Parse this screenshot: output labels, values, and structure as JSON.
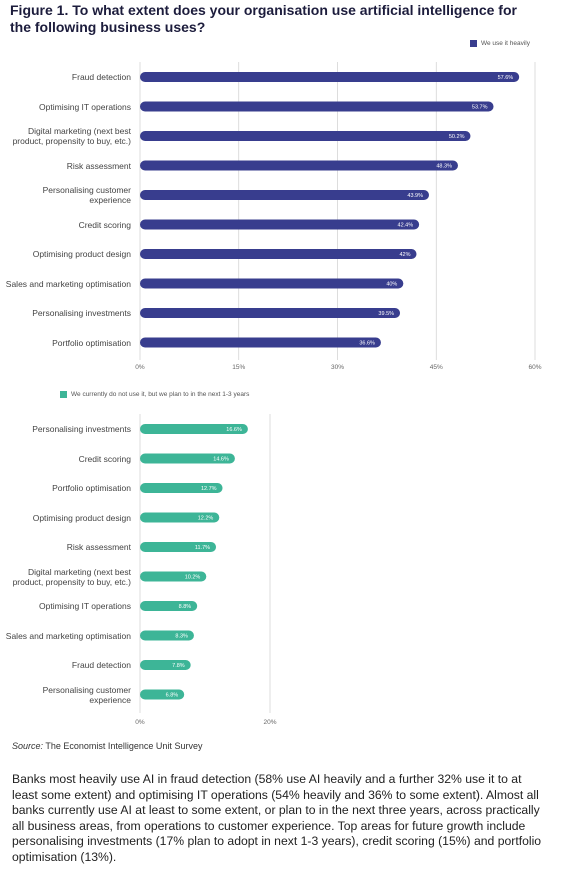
{
  "title": "Figure 1. To what extent does your organisation use artificial intelligence for the following business uses?",
  "chart_data": [
    {
      "type": "bar",
      "orientation": "horizontal",
      "categories": [
        "Fraud detection",
        "Optimising IT operations",
        "Digital marketing (next best product, propensity to buy, etc.)",
        "Risk assessment",
        "Personalising customer experience",
        "Credit scoring",
        "Optimising product design",
        "Sales and marketing optimisation",
        "Personalising investments",
        "Portfolio optimisation"
      ],
      "series": [
        {
          "name": "We use it heavily",
          "color": "#383d8e",
          "values": [
            57.6,
            53.7,
            50.2,
            48.3,
            43.9,
            42.4,
            42,
            40,
            39.5,
            36.6
          ],
          "value_labels": [
            "57.6%",
            "53.7%",
            "50.2%",
            "48.3%",
            "43.9%",
            "42.4%",
            "42%",
            "40%",
            "39.5%",
            "36.6%"
          ]
        }
      ],
      "xlim": [
        0,
        60
      ],
      "xticks": [
        {
          "value": 0,
          "label": "0%"
        },
        {
          "value": 15,
          "label": "15%"
        },
        {
          "value": 30,
          "label": "30%"
        },
        {
          "value": 45,
          "label": "45%"
        },
        {
          "value": 60,
          "label": "60%"
        }
      ],
      "grid": true,
      "legend": "upper right"
    },
    {
      "type": "bar",
      "orientation": "horizontal",
      "categories": [
        "Personalising investments",
        "Credit scoring",
        "Portfolio optimisation",
        "Optimising product design",
        "Risk assessment",
        "Digital marketing (next best product, propensity to buy, etc.)",
        "Optimising IT operations",
        "Sales and marketing optimisation",
        "Fraud detection",
        "Personalising customer experience"
      ],
      "series": [
        {
          "name": "We currently do not use it, but we plan to in the next 1-3 years",
          "color": "#3db597",
          "values": [
            16.6,
            14.6,
            12.7,
            12.2,
            11.7,
            10.2,
            8.8,
            8.3,
            7.8,
            6.8
          ],
          "value_labels": [
            "16.6%",
            "14.6%",
            "12.7%",
            "12.2%",
            "11.7%",
            "10.2%",
            "8.8%",
            "8.3%",
            "7.8%",
            "6.8%"
          ]
        }
      ],
      "xlim": [
        0,
        20
      ],
      "xticks": [
        {
          "value": 0,
          "label": "0%"
        },
        {
          "value": 20,
          "label": "20%"
        }
      ],
      "grid": true,
      "legend": "upper left"
    }
  ],
  "source": {
    "label": "Source:",
    "text": "The Economist Intelligence Unit Survey"
  },
  "body": "Banks most heavily use AI in fraud detection (58% use AI heavily and a further 32% use it to at least some extent) and optimising IT operations (54% heavily and 36% to some extent). Almost all banks currently use AI at least to some extent, or plan to in the next three years, across practically all business areas, from operations to customer experience. Top areas for future growth include personalising investments (17% plan to adopt in next 1-3 years), credit scoring (15%) and portfolio optimisation (13%)."
}
